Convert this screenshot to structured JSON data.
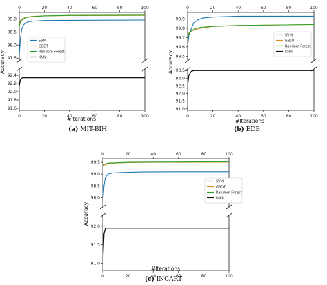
{
  "colors": {
    "SVM": "#1f77b4",
    "GBDT": "#e08a1e",
    "Random Forest": "#2ca02c",
    "KNN": "#111111"
  },
  "chart_data": [
    {
      "id": "a",
      "type": "line",
      "caption_label": "(a)",
      "caption_text": "MIT-BIH",
      "xlabel": "#Iterations",
      "ylabel": "Accuracy",
      "xlim": [
        0,
        100
      ],
      "xticks": [
        0,
        20,
        40,
        60,
        80,
        100
      ],
      "broken_y": true,
      "upper": {
        "ylim": [
          97.4,
          99.25
        ],
        "yticks": [
          97.5,
          98.0,
          98.5,
          99.0
        ]
      },
      "lower": {
        "ylim": [
          91.55,
          92.55
        ],
        "yticks": [
          91.6,
          91.8,
          92.0,
          92.2,
          92.4
        ]
      },
      "legend": {
        "position": "right",
        "entries": [
          "SVM",
          "GBDT",
          "Random Forest",
          "KNN"
        ]
      },
      "series": [
        {
          "name": "SVM",
          "x": [
            0,
            1,
            2,
            3,
            5,
            8,
            12,
            20,
            40,
            100
          ],
          "y": [
            97.6,
            98.3,
            98.6,
            98.75,
            98.85,
            98.9,
            98.92,
            98.94,
            98.95,
            98.96
          ]
        },
        {
          "name": "GBDT",
          "x": [
            0,
            1,
            3,
            5,
            10,
            20,
            40,
            100
          ],
          "y": [
            98.75,
            98.95,
            99.02,
            99.06,
            99.1,
            99.12,
            99.13,
            99.14
          ]
        },
        {
          "name": "Random Forest",
          "x": [
            0,
            1,
            3,
            5,
            10,
            20,
            40,
            100
          ],
          "y": [
            98.7,
            98.9,
            99.0,
            99.05,
            99.09,
            99.12,
            99.14,
            99.15
          ]
        },
        {
          "name": "KNN",
          "x": [
            0,
            1,
            2,
            3,
            100
          ],
          "y": [
            92.15,
            92.3,
            92.33,
            92.34,
            92.34
          ]
        }
      ]
    },
    {
      "id": "b",
      "type": "line",
      "caption_label": "(b)",
      "caption_text": "EDB",
      "xlabel": "#Iterations",
      "ylabel": "Accuracy",
      "xlim": [
        0,
        100
      ],
      "xticks": [
        0,
        20,
        40,
        60,
        80,
        100
      ],
      "broken_y": true,
      "upper": {
        "ylim": [
          99.45,
          99.97
        ],
        "yticks": [
          99.5,
          99.6,
          99.7,
          99.8,
          99.9
        ]
      },
      "lower": {
        "ylim": [
          90.9,
          93.6
        ],
        "yticks": [
          91.0,
          91.5,
          92.0,
          92.5,
          93.0,
          93.5
        ]
      },
      "legend": {
        "position": "right",
        "entries": [
          "SVM",
          "GBDT",
          "Random Forest",
          "KNN"
        ]
      },
      "series": [
        {
          "name": "SVM",
          "x": [
            0,
            1,
            3,
            5,
            8,
            12,
            20,
            40,
            100
          ],
          "y": [
            99.6,
            99.72,
            99.8,
            99.86,
            99.89,
            99.91,
            99.92,
            99.93,
            99.93
          ]
        },
        {
          "name": "GBDT",
          "x": [
            0,
            1,
            3,
            5,
            10,
            20,
            40,
            100
          ],
          "y": [
            99.7,
            99.75,
            99.77,
            99.78,
            99.8,
            99.82,
            99.83,
            99.84
          ]
        },
        {
          "name": "Random Forest",
          "x": [
            0,
            1,
            3,
            5,
            10,
            20,
            40,
            100
          ],
          "y": [
            99.68,
            99.74,
            99.77,
            99.79,
            99.81,
            99.82,
            99.83,
            99.84
          ]
        },
        {
          "name": "KNN",
          "x": [
            0,
            1,
            3,
            5,
            100
          ],
          "y": [
            92.5,
            93.2,
            93.45,
            93.5,
            93.5
          ]
        }
      ]
    },
    {
      "id": "c",
      "type": "line",
      "caption_label": "(c)",
      "caption_text": "INCART",
      "xlabel": "#Iterations",
      "ylabel": "Accuracy",
      "xlim": [
        0,
        100
      ],
      "xticks": [
        0,
        20,
        40,
        60,
        80,
        100
      ],
      "broken_y": true,
      "upper": {
        "ylim": [
          97.6,
          99.65
        ],
        "yticks": [
          98.0,
          98.5,
          99.0,
          99.5
        ]
      },
      "lower": {
        "ylim": [
          90.8,
          92.3
        ],
        "yticks": [
          91.0,
          91.5,
          92.0
        ]
      },
      "legend": {
        "position": "right",
        "entries": [
          "SVM",
          "GBDT",
          "Random Forest",
          "KNN"
        ]
      },
      "series": [
        {
          "name": "SVM",
          "x": [
            0,
            1,
            2,
            4,
            8,
            15,
            30,
            60,
            100
          ],
          "y": [
            97.8,
            98.5,
            98.85,
            99.0,
            99.05,
            99.07,
            99.09,
            99.1,
            99.1
          ]
        },
        {
          "name": "GBDT",
          "x": [
            0,
            1,
            3,
            5,
            10,
            20,
            40,
            100
          ],
          "y": [
            99.35,
            99.38,
            99.42,
            99.45,
            99.47,
            99.49,
            99.5,
            99.51
          ]
        },
        {
          "name": "Random Forest",
          "x": [
            0,
            1,
            3,
            5,
            10,
            20,
            40,
            100
          ],
          "y": [
            99.38,
            99.42,
            99.45,
            99.47,
            99.48,
            99.5,
            99.51,
            99.52
          ]
        },
        {
          "name": "KNN",
          "x": [
            0,
            1,
            2,
            3,
            100
          ],
          "y": [
            91.05,
            91.8,
            91.93,
            91.95,
            91.95
          ]
        }
      ]
    }
  ]
}
